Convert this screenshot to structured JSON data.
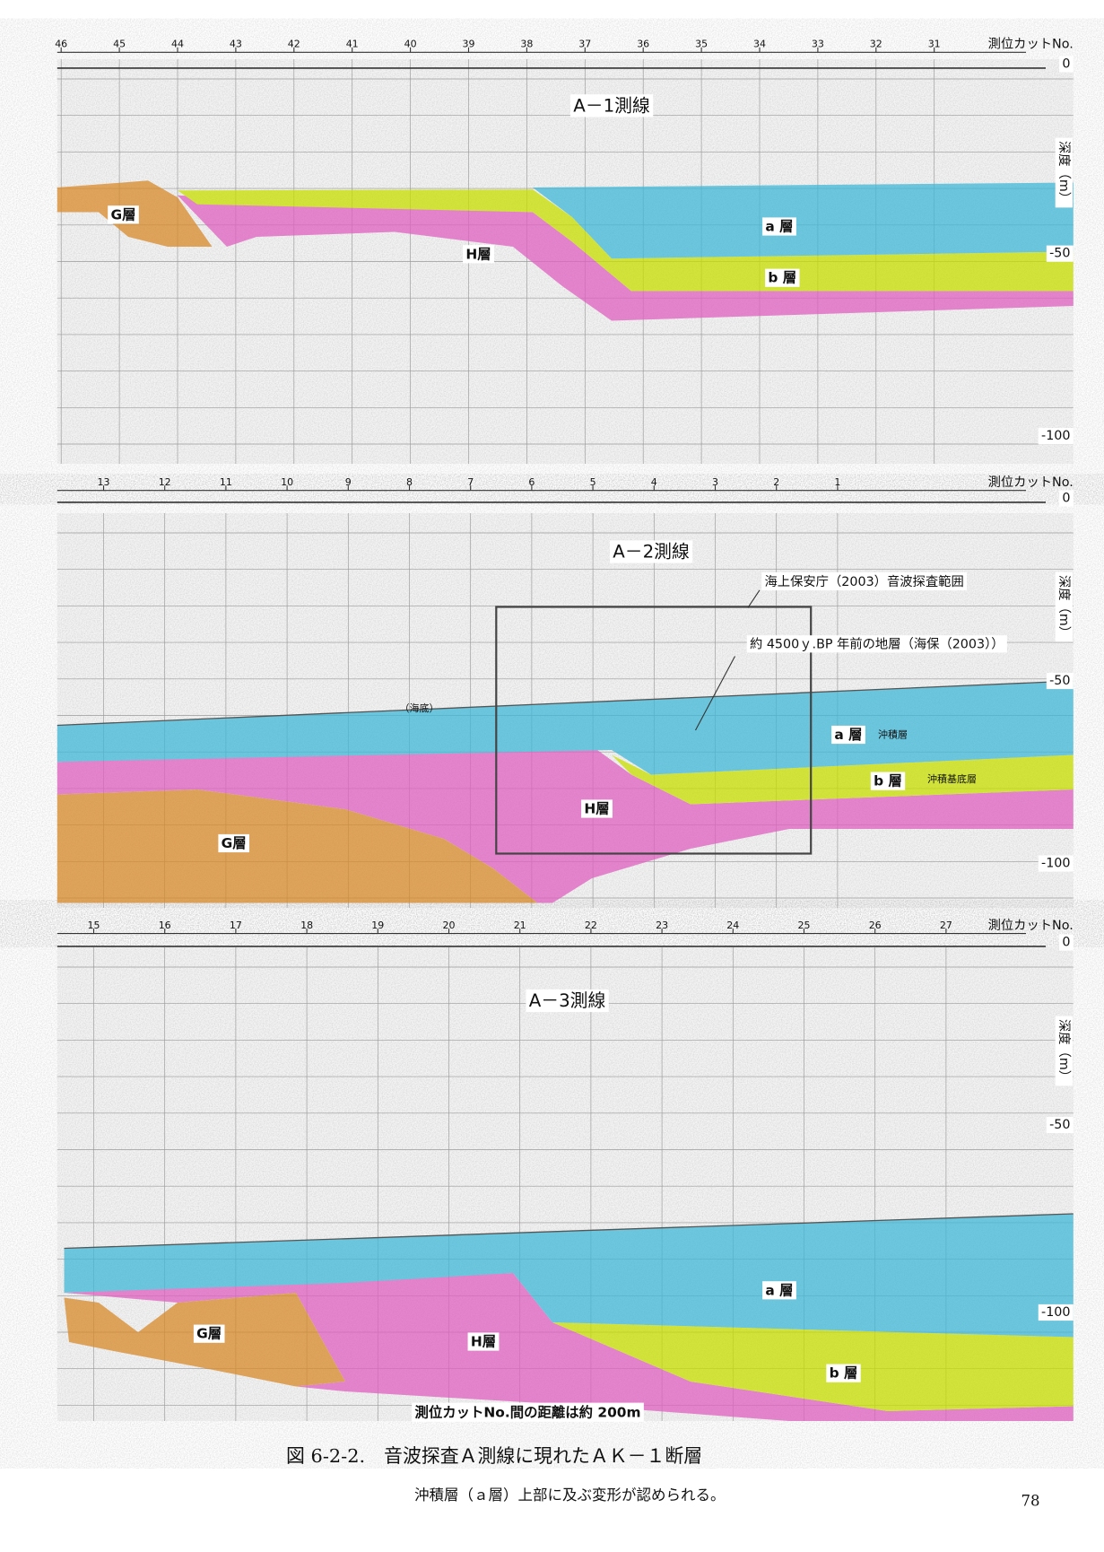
{
  "panels": [
    {
      "title": "A－1測線",
      "header": "測位カットNo.",
      "depth_axis": "深度（m）",
      "depth_ticks": [
        "0",
        "-50",
        "-100"
      ],
      "stations": [
        "46",
        "45",
        "44",
        "43",
        "42",
        "41",
        "40",
        "39",
        "38",
        "37",
        "36",
        "35",
        "34",
        "33",
        "32",
        "31"
      ],
      "layers": {
        "g": "G層",
        "h": "H層",
        "a": "a 層",
        "b": "b 層"
      }
    },
    {
      "title": "A－2測線",
      "header": "測位カットNo.",
      "depth_axis": "深度（m）",
      "depth_ticks": [
        "0",
        "-50",
        "-100"
      ],
      "stations": [
        "13",
        "12",
        "11",
        "10",
        "9",
        "8",
        "7",
        "6",
        "5",
        "4",
        "3",
        "2",
        "1"
      ],
      "layers": {
        "g": "G層",
        "h": "H層",
        "a": "a 層",
        "b": "b 層"
      },
      "annotations": {
        "survey_range": "海上保安庁（2003）音波探査範囲",
        "stratum_age": "約 4500ｙ.BP 年前の地層（海保（2003））",
        "seafloor": "（海底）",
        "alluvium": "沖積層",
        "alluvium_base": "沖積基底層"
      }
    },
    {
      "title": "A－3測線",
      "header": "測位カットNo.",
      "depth_axis": "深度（m）",
      "depth_ticks": [
        "0",
        "-50",
        "-100"
      ],
      "stations": [
        "15",
        "16",
        "17",
        "18",
        "19",
        "20",
        "21",
        "22",
        "23",
        "24",
        "25",
        "26",
        "27"
      ],
      "layers": {
        "g": "G層",
        "h": "H層",
        "a": "a 層",
        "b": "b 層"
      },
      "annotations": {
        "spacing": "測位カットNo.間の距離は約 200m"
      }
    }
  ],
  "caption": {
    "title": "図 6-2-2.　音波探査Ａ測線に現れたＡＫ－１断層",
    "note": "沖積層（ａ層）上部に及ぶ変形が認められる。"
  },
  "page_number": "78"
}
